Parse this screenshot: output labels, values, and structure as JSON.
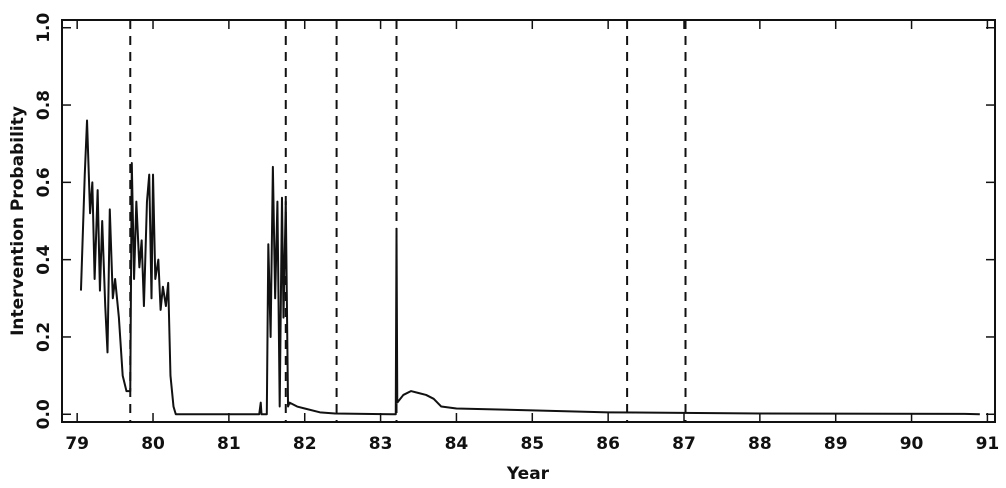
{
  "chart_data": {
    "type": "line",
    "xlabel": "Year",
    "ylabel": "Intervention Probability",
    "xlim": [
      78.8,
      91.1
    ],
    "ylim": [
      -0.02,
      1.02
    ],
    "xticks": [
      79,
      80,
      81,
      82,
      83,
      84,
      85,
      86,
      87,
      88,
      89,
      90,
      91
    ],
    "yticks": [
      {
        "value": 0,
        "label": "0.0"
      },
      0.2,
      0.4,
      0.6,
      0.8,
      {
        "value": 1,
        "label": "1.0"
      }
    ],
    "color": "#111111",
    "vlines": [
      79.7,
      81.75,
      82.42,
      83.21,
      86.25,
      87.02
    ],
    "x": [
      79.05,
      79.1,
      79.13,
      79.17,
      79.2,
      79.23,
      79.27,
      79.3,
      79.33,
      79.37,
      79.4,
      79.43,
      79.47,
      79.5,
      79.55,
      79.6,
      79.65,
      79.7,
      79.72,
      79.75,
      79.78,
      79.82,
      79.85,
      79.88,
      79.92,
      79.95,
      79.98,
      80.0,
      80.03,
      80.07,
      80.1,
      80.13,
      80.17,
      80.2,
      80.23,
      80.27,
      80.3,
      81.4,
      81.42,
      81.43,
      81.5,
      81.52,
      81.55,
      81.58,
      81.61,
      81.64,
      81.67,
      81.7,
      81.72,
      81.75,
      81.78,
      81.8,
      81.9,
      82.0,
      82.2,
      82.4,
      83.15,
      83.2,
      83.21,
      83.22,
      83.3,
      83.4,
      83.5,
      83.6,
      83.7,
      83.8,
      84.0,
      85.0,
      86.0,
      88.0,
      90.7,
      90.9
    ],
    "values": [
      0.32,
      0.62,
      0.76,
      0.52,
      0.6,
      0.35,
      0.58,
      0.32,
      0.5,
      0.28,
      0.16,
      0.53,
      0.3,
      0.35,
      0.25,
      0.1,
      0.06,
      0.06,
      0.65,
      0.35,
      0.55,
      0.38,
      0.45,
      0.28,
      0.55,
      0.62,
      0.3,
      0.62,
      0.35,
      0.4,
      0.27,
      0.33,
      0.28,
      0.34,
      0.1,
      0.02,
      0.0,
      0.0,
      0.03,
      0.0,
      0.0,
      0.44,
      0.2,
      0.64,
      0.3,
      0.55,
      0.02,
      0.56,
      0.25,
      0.55,
      0.02,
      0.03,
      0.02,
      0.015,
      0.005,
      0.002,
      0.0,
      0.0,
      0.48,
      0.03,
      0.05,
      0.06,
      0.055,
      0.05,
      0.04,
      0.02,
      0.015,
      0.01,
      0.005,
      0.002,
      0.001,
      0.0
    ]
  }
}
